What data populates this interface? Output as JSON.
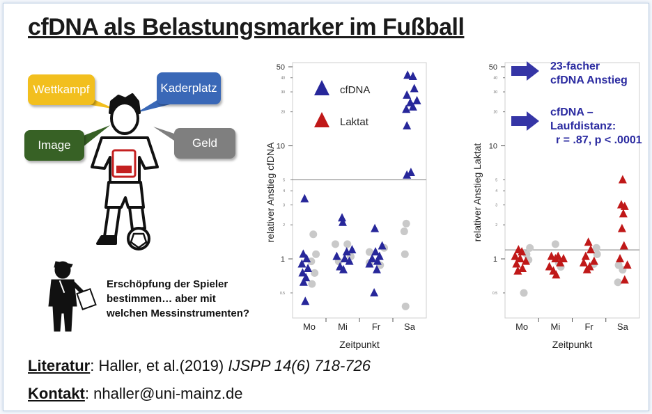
{
  "title": "cfDNA als Belastungsmarker im Fußball",
  "bubbles": {
    "wettkampf": "Wettkampf",
    "kaderplatz": "Kaderplatz",
    "image": "Image",
    "geld": "Geld"
  },
  "question": [
    "Erschöpfung der Spieler",
    "bestimmen… aber mit",
    "welchen Messinstrumenten?"
  ],
  "literature": {
    "label": "Literatur",
    "text": ": Haller, et al.(2019) ",
    "citation": "IJSPP 14(6) 718-726"
  },
  "contact": {
    "label": "Kontakt",
    "text": ": nhaller@uni-mainz.de"
  },
  "annotations": {
    "anstieg": [
      "23-facher",
      "cfDNA Anstieg"
    ],
    "korrelation_title": [
      "cfDNA –",
      "Laufdistanz:"
    ],
    "korrelation_stats": "r = .87, p < .0001"
  },
  "colors": {
    "cfdna": "#27279a",
    "laktat": "#c01818",
    "other": "#c9c9c9",
    "note": "#2a2aa0",
    "arrow": "#3535a6"
  },
  "chart_data": [
    {
      "type": "scatter",
      "title": "",
      "xlabel": "Zeitpunkt",
      "ylabel": "relativer Anstieg cfDNA",
      "yscale": "log",
      "ylim": [
        0.3,
        50
      ],
      "major_ticks": [
        1,
        10,
        50
      ],
      "minor_ticks": [
        0.5,
        2,
        3,
        4,
        5,
        20,
        30,
        40
      ],
      "categories": [
        "Mo",
        "Mi",
        "Fr",
        "Sa"
      ],
      "reference_line": 5,
      "legend": [
        "cfDNA",
        "Laktat"
      ],
      "legend_position": "top-left",
      "series": [
        {
          "name": "cfDNA",
          "marker": "triangle",
          "color": "#27279a",
          "points": [
            {
              "x": "Mo",
              "y": 3.4,
              "j": -0.14
            },
            {
              "x": "Mo",
              "y": 1.1,
              "j": -0.18
            },
            {
              "x": "Mo",
              "y": 1.0,
              "j": -0.08
            },
            {
              "x": "Mo",
              "y": 0.9,
              "j": -0.22
            },
            {
              "x": "Mo",
              "y": 0.82,
              "j": -0.04
            },
            {
              "x": "Mo",
              "y": 0.75,
              "j": -0.2
            },
            {
              "x": "Mo",
              "y": 0.68,
              "j": -0.1
            },
            {
              "x": "Mo",
              "y": 0.62,
              "j": -0.17
            },
            {
              "x": "Mo",
              "y": 0.42,
              "j": -0.12
            },
            {
              "x": "Mi",
              "y": 2.3,
              "j": -0.02
            },
            {
              "x": "Mi",
              "y": 2.1,
              "j": 0.0
            },
            {
              "x": "Mi",
              "y": 1.2,
              "j": 0.28
            },
            {
              "x": "Mi",
              "y": 1.15,
              "j": 0.12
            },
            {
              "x": "Mi",
              "y": 1.05,
              "j": -0.18
            },
            {
              "x": "Mi",
              "y": 1.0,
              "j": 0.06
            },
            {
              "x": "Mi",
              "y": 0.95,
              "j": 0.2
            },
            {
              "x": "Mi",
              "y": 0.85,
              "j": -0.08
            },
            {
              "x": "Mi",
              "y": 0.8,
              "j": 0.02
            },
            {
              "x": "Fr",
              "y": 1.85,
              "j": -0.04
            },
            {
              "x": "Fr",
              "y": 1.3,
              "j": 0.18
            },
            {
              "x": "Fr",
              "y": 1.15,
              "j": -0.02
            },
            {
              "x": "Fr",
              "y": 1.05,
              "j": 0.1
            },
            {
              "x": "Fr",
              "y": 1.0,
              "j": -0.12
            },
            {
              "x": "Fr",
              "y": 0.95,
              "j": 0.04
            },
            {
              "x": "Fr",
              "y": 0.9,
              "j": -0.2
            },
            {
              "x": "Fr",
              "y": 0.8,
              "j": 0.02
            },
            {
              "x": "Fr",
              "y": 0.5,
              "j": -0.06
            },
            {
              "x": "Sa",
              "y": 42,
              "j": -0.06
            },
            {
              "x": "Sa",
              "y": 41,
              "j": 0.1
            },
            {
              "x": "Sa",
              "y": 32,
              "j": 0.14
            },
            {
              "x": "Sa",
              "y": 28,
              "j": -0.08
            },
            {
              "x": "Sa",
              "y": 25,
              "j": 0.22
            },
            {
              "x": "Sa",
              "y": 24,
              "j": 0.02
            },
            {
              "x": "Sa",
              "y": 22,
              "j": 0.1
            },
            {
              "x": "Sa",
              "y": 21,
              "j": -0.1
            },
            {
              "x": "Sa",
              "y": 15,
              "j": -0.08
            },
            {
              "x": "Sa",
              "y": 5.8,
              "j": 0.04
            },
            {
              "x": "Sa",
              "y": 5.5,
              "j": -0.08
            }
          ]
        },
        {
          "name": "",
          "marker": "circle",
          "color": "#c9c9c9",
          "points": [
            {
              "x": "Mo",
              "y": 1.65,
              "j": 0.12
            },
            {
              "x": "Mo",
              "y": 1.1,
              "j": 0.2
            },
            {
              "x": "Mo",
              "y": 0.95,
              "j": 0.06
            },
            {
              "x": "Mo",
              "y": 0.75,
              "j": 0.16
            },
            {
              "x": "Mo",
              "y": 0.6,
              "j": 0.08
            },
            {
              "x": "Mi",
              "y": 1.35,
              "j": -0.22
            },
            {
              "x": "Mi",
              "y": 1.35,
              "j": 0.14
            },
            {
              "x": "Mi",
              "y": 1.05,
              "j": 0.24
            },
            {
              "x": "Mi",
              "y": 0.95,
              "j": -0.12
            },
            {
              "x": "Fr",
              "y": 1.25,
              "j": 0.24
            },
            {
              "x": "Fr",
              "y": 1.15,
              "j": -0.2
            },
            {
              "x": "Fr",
              "y": 0.92,
              "j": -0.2
            },
            {
              "x": "Fr",
              "y": 0.88,
              "j": 0.12
            },
            {
              "x": "Sa",
              "y": 2.05,
              "j": -0.1
            },
            {
              "x": "Sa",
              "y": 1.75,
              "j": -0.16
            },
            {
              "x": "Sa",
              "y": 1.1,
              "j": -0.14
            },
            {
              "x": "Sa",
              "y": 0.38,
              "j": -0.12
            }
          ]
        }
      ]
    },
    {
      "type": "scatter",
      "title": "",
      "xlabel": "Zeitpunkt",
      "ylabel": "relativer Anstieg Laktat",
      "yscale": "log",
      "ylim": [
        0.3,
        50
      ],
      "major_ticks": [
        1,
        10,
        50
      ],
      "minor_ticks": [
        0.5,
        2,
        3,
        4,
        5,
        20,
        30,
        40
      ],
      "categories": [
        "Mo",
        "Mi",
        "Fr",
        "Sa"
      ],
      "reference_line": 1.2,
      "series": [
        {
          "name": "Laktat",
          "marker": "triangle",
          "color": "#c01818",
          "points": [
            {
              "x": "Mo",
              "y": 1.2,
              "j": -0.1
            },
            {
              "x": "Mo",
              "y": 1.15,
              "j": 0.0
            },
            {
              "x": "Mo",
              "y": 1.05,
              "j": -0.2
            },
            {
              "x": "Mo",
              "y": 1.0,
              "j": -0.05
            },
            {
              "x": "Mo",
              "y": 0.95,
              "j": 0.12
            },
            {
              "x": "Mo",
              "y": 0.9,
              "j": -0.16
            },
            {
              "x": "Mo",
              "y": 0.82,
              "j": 0.02
            },
            {
              "x": "Mo",
              "y": 0.78,
              "j": -0.12
            },
            {
              "x": "Mi",
              "y": 1.05,
              "j": -0.12
            },
            {
              "x": "Mi",
              "y": 1.05,
              "j": 0.08
            },
            {
              "x": "Mi",
              "y": 1.0,
              "j": 0.24
            },
            {
              "x": "Mi",
              "y": 1.0,
              "j": 0.0
            },
            {
              "x": "Mi",
              "y": 0.92,
              "j": 0.14
            },
            {
              "x": "Mi",
              "y": 0.85,
              "j": -0.18
            },
            {
              "x": "Mi",
              "y": 0.78,
              "j": -0.06
            },
            {
              "x": "Mi",
              "y": 0.72,
              "j": 0.02
            },
            {
              "x": "Fr",
              "y": 1.4,
              "j": -0.02
            },
            {
              "x": "Fr",
              "y": 1.2,
              "j": 0.05
            },
            {
              "x": "Fr",
              "y": 1.05,
              "j": -0.1
            },
            {
              "x": "Fr",
              "y": 0.95,
              "j": 0.15
            },
            {
              "x": "Fr",
              "y": 0.92,
              "j": -0.16
            },
            {
              "x": "Fr",
              "y": 0.85,
              "j": 0.02
            },
            {
              "x": "Fr",
              "y": 0.8,
              "j": -0.06
            },
            {
              "x": "Sa",
              "y": 5.0,
              "j": 0.0
            },
            {
              "x": "Sa",
              "y": 3.0,
              "j": -0.04
            },
            {
              "x": "Sa",
              "y": 2.9,
              "j": 0.06
            },
            {
              "x": "Sa",
              "y": 2.5,
              "j": 0.02
            },
            {
              "x": "Sa",
              "y": 1.85,
              "j": -0.02
            },
            {
              "x": "Sa",
              "y": 1.3,
              "j": 0.04
            },
            {
              "x": "Sa",
              "y": 1.0,
              "j": -0.08
            },
            {
              "x": "Sa",
              "y": 0.88,
              "j": 0.14
            },
            {
              "x": "Sa",
              "y": 0.65,
              "j": 0.06
            }
          ]
        },
        {
          "name": "",
          "marker": "circle",
          "color": "#c9c9c9",
          "points": [
            {
              "x": "Mo",
              "y": 1.25,
              "j": 0.24
            },
            {
              "x": "Mo",
              "y": 1.1,
              "j": 0.14
            },
            {
              "x": "Mo",
              "y": 0.98,
              "j": 0.2
            },
            {
              "x": "Mo",
              "y": 0.5,
              "j": 0.06
            },
            {
              "x": "Mi",
              "y": 1.35,
              "j": 0.0
            },
            {
              "x": "Mi",
              "y": 0.92,
              "j": 0.1
            },
            {
              "x": "Mi",
              "y": 0.85,
              "j": 0.16
            },
            {
              "x": "Fr",
              "y": 1.25,
              "j": 0.22
            },
            {
              "x": "Fr",
              "y": 1.1,
              "j": 0.24
            },
            {
              "x": "Fr",
              "y": 0.9,
              "j": 0.14
            },
            {
              "x": "Sa",
              "y": 0.88,
              "j": -0.12
            },
            {
              "x": "Sa",
              "y": 0.8,
              "j": 0.0
            },
            {
              "x": "Sa",
              "y": 0.62,
              "j": -0.14
            }
          ]
        }
      ]
    }
  ]
}
